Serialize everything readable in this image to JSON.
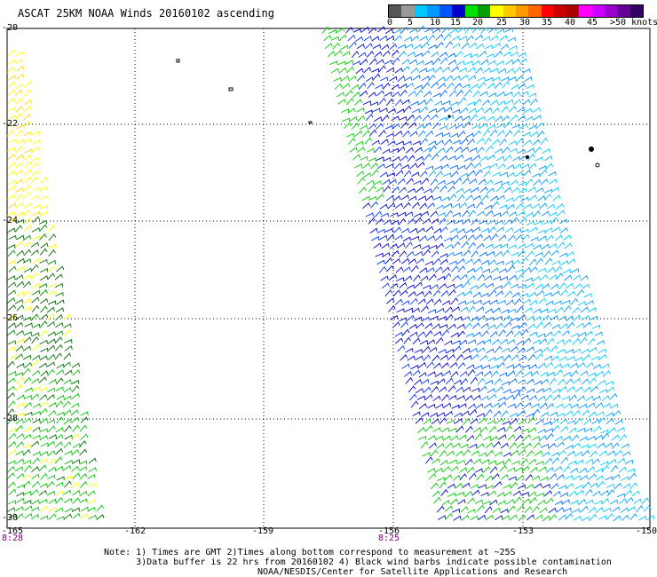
{
  "title": "ASCAT 25KM NOAA Winds 20160102 ascending",
  "legend": {
    "colors": [
      "#555555",
      "#999999",
      "#00c8ff",
      "#0099ff",
      "#0055ff",
      "#0000cc",
      "#00e100",
      "#00a000",
      "#ffff00",
      "#ffc800",
      "#ff9900",
      "#ff6600",
      "#ff0000",
      "#cc0000",
      "#aa0000",
      "#ff00ff",
      "#cc00ff",
      "#9900cc",
      "#660099",
      "#330066"
    ],
    "labels": [
      "0",
      "5",
      "10",
      "15",
      "20",
      "25",
      "30",
      "35",
      "40",
      "45",
      ">50 knots"
    ]
  },
  "y_labels": [
    "-20",
    "-22",
    "-24",
    "-26",
    "-28",
    "-30"
  ],
  "x_labels": [
    "-165",
    "-162",
    "-159",
    "-156",
    "-153",
    "-150"
  ],
  "time_labels": [
    "8:28",
    "8:25"
  ],
  "notes": {
    "line1": "Note: 1) Times are GMT 2)Times along bottom correspond to measurement at ~25S",
    "line2": "      3)Data buffer is 22 hrs from 20160102 4) Black wind barbs indicate possible contamination",
    "line3": "NOAA/NESDIS/Center for Satellite Applications and Research"
  }
}
